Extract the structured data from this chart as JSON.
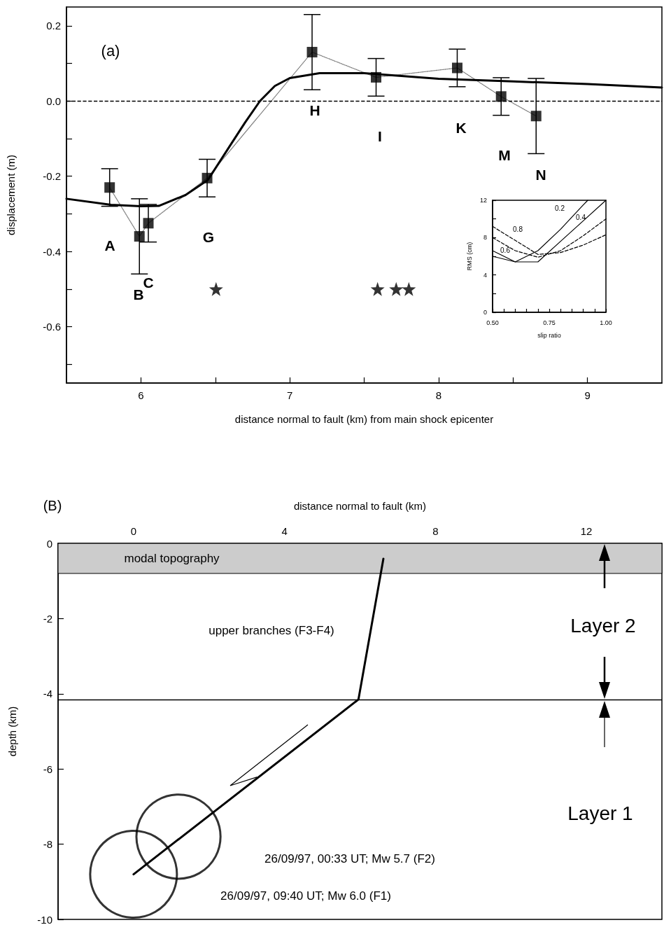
{
  "chart_data": [
    {
      "type": "scatter",
      "xlabel": "distance normal to fault (km) from main shock epicenter",
      "ylabel": "displacement (m)",
      "annotations": [
        "(a)",
        "A",
        "B",
        "C",
        "G",
        "H",
        "I",
        "K",
        "M",
        "N"
      ],
      "x": [
        5.79,
        5.99,
        6.05,
        6.445,
        7.15,
        7.58,
        8.125,
        8.42,
        8.655
      ],
      "series": [
        {
          "color": "#000000",
          "marker": "square",
          "values": [
            -0.23,
            -0.36,
            -0.325,
            -0.205,
            0.13,
            0.063,
            0.088,
            0.012,
            -0.04
          ],
          "errors": [
            0.05,
            0.1,
            0.05,
            0.05,
            0.1,
            0.05,
            0.05,
            0.05,
            0.1
          ]
        },
        {
          "type": "line",
          "color": "#808080",
          "marker": "none",
          "line_style": "dotted",
          "values": [
            -0.23,
            -0.36,
            -0.325,
            -0.205,
            0.13,
            0.063,
            0.088,
            0.012,
            -0.04
          ]
        },
        {
          "type": "line",
          "color": "#000000",
          "marker": "none",
          "line_style": "solid",
          "x": [
            5.5,
            5.8,
            6.0,
            6.12,
            6.3,
            6.45,
            6.6,
            6.7,
            6.8,
            6.9,
            7.0,
            7.2,
            7.5,
            8.0,
            8.5,
            9.0,
            9.5
          ],
          "values": [
            -0.26,
            -0.276,
            -0.28,
            -0.279,
            -0.25,
            -0.21,
            -0.118,
            -0.057,
            0.0,
            0.04,
            0.061,
            0.074,
            0.074,
            0.059,
            0.052,
            0.045,
            0.036
          ]
        },
        {
          "color": "#000000",
          "marker": "star",
          "x": [
            6.505,
            7.59,
            7.715,
            7.8
          ],
          "values": [
            -0.5,
            -0.5,
            -0.5,
            -0.5
          ]
        }
      ],
      "xlim": [
        5.5,
        9.5
      ],
      "xticks": [
        6,
        {
          "value": 6.5,
          "label": null
        },
        7,
        {
          "value": 7.5,
          "label": null
        },
        8,
        {
          "value": 8.5,
          "label": null
        },
        9
      ],
      "ylim": [
        -0.75,
        0.25
      ],
      "yticks": [
        {
          "value": -0.7,
          "label": null
        },
        -0.6,
        {
          "value": -0.5,
          "label": null
        },
        -0.4,
        {
          "value": -0.3,
          "label": null
        },
        -0.2,
        {
          "value": -0.1,
          "label": null
        },
        {
          "value": 0,
          "label": "0.0"
        },
        {
          "value": 0.1,
          "label": null
        },
        0.2
      ],
      "ref_lines": [
        {
          "axis": "y",
          "value": 0,
          "line_style": "dashed",
          "color": "#000000"
        }
      ]
    },
    {
      "type": "line",
      "xlabel": "slip ratio",
      "ylabel": "RMS (cm)",
      "annotations": [
        "0.2",
        "0.4",
        "0.8",
        "0.6"
      ],
      "series": [
        {
          "color": "#000000",
          "marker": "none",
          "line_style": "solid",
          "x": [
            0.5,
            0.6,
            0.7,
            0.8,
            0.9,
            0.92
          ],
          "values": [
            6.6,
            5.4,
            6.6,
            8.9,
            11.5,
            12
          ]
        },
        {
          "color": "#000000",
          "marker": "none",
          "line_style": "solid",
          "x": [
            0.5,
            0.6,
            0.7,
            0.8,
            0.9,
            1.0
          ],
          "values": [
            6.0,
            5.4,
            5.4,
            7.6,
            9.8,
            12
          ]
        },
        {
          "color": "#000000",
          "marker": "none",
          "line_style": "dashed",
          "x": [
            0.5,
            0.6,
            0.7,
            0.8,
            0.9,
            1.0
          ],
          "values": [
            9.2,
            7.7,
            6.2,
            6.4,
            7.2,
            8.3
          ]
        },
        {
          "color": "#000000",
          "marker": "none",
          "line_style": "dashed",
          "x": [
            0.5,
            0.6,
            0.7,
            0.8,
            0.9,
            1.0
          ],
          "values": [
            8.0,
            6.6,
            5.9,
            6.6,
            8.2,
            10.0
          ]
        }
      ],
      "xlim": [
        0.5,
        1.0
      ],
      "xticks": [
        {
          "value": 0.5,
          "label": "0.50"
        },
        {
          "value": 0.55,
          "label": null
        },
        {
          "value": 0.6,
          "label": null
        },
        {
          "value": 0.65,
          "label": null
        },
        {
          "value": 0.7,
          "label": null
        },
        {
          "value": 0.75,
          "label": "0.75"
        },
        {
          "value": 0.8,
          "label": null
        },
        {
          "value": 0.85,
          "label": null
        },
        {
          "value": 0.9,
          "label": null
        },
        {
          "value": 0.95,
          "label": null
        },
        {
          "value": 1.0,
          "label": "1.00"
        }
      ],
      "ylim": [
        0,
        12
      ],
      "yticks": [
        0,
        {
          "value": 2,
          "label": null
        },
        4,
        {
          "value": 6,
          "label": null
        },
        8,
        {
          "value": 10,
          "label": null
        },
        12
      ]
    },
    {
      "type": "line",
      "xlabel": "distance normal to fault (km)",
      "ylabel": "depth (km)",
      "annotations": [
        "(B)",
        "upper branches (F3-F4)",
        "Layer 2",
        "Layer 1",
        "26/09/97, 00:33 UT; Mw 5.7 (F2)",
        "26/09/97, 09:40 UT; Mw 6.0 (F1)"
      ],
      "series": [
        {
          "color": "#000000",
          "marker": "none",
          "line_style": "solid",
          "x": [
            6.62,
            5.96,
            0
          ],
          "values": [
            -0.41,
            -4.15,
            -8.8
          ]
        },
        {
          "type": "bubble",
          "color": "#000000",
          "marker": "circle",
          "x": [
            1.19,
            0
          ],
          "values": [
            -7.8,
            -8.8
          ],
          "sizes": [
            0.94,
            1
          ]
        }
      ],
      "xlim": [
        -2,
        14
      ],
      "xticks": [
        0,
        {
          "value": 2,
          "label": null
        },
        4,
        {
          "value": 6,
          "label": null
        },
        8,
        {
          "value": 10,
          "label": null
        },
        12
      ],
      "ylim": [
        -10,
        0
      ],
      "yticks": [
        -10,
        -8,
        -6,
        -4,
        -2,
        0
      ],
      "ref_lines": [
        {
          "axis": "y",
          "value": -4.15,
          "color": "#000000",
          "line_style": "solid"
        }
      ],
      "bands": [
        {
          "axis": "y",
          "from": -0.8,
          "to": 0,
          "label": "modal topography",
          "color": "#cccccc"
        }
      ]
    }
  ]
}
